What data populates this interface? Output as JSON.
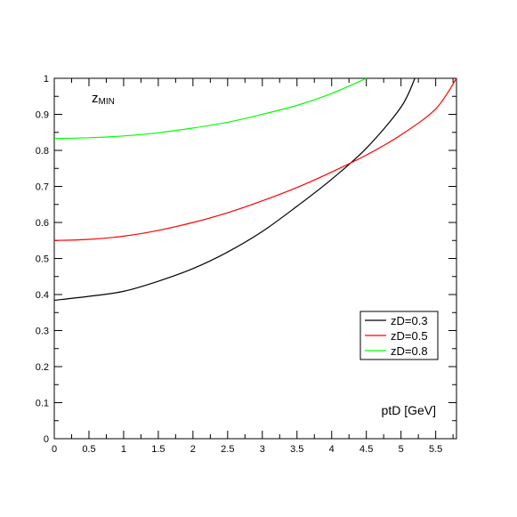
{
  "chart_data": {
    "type": "line",
    "title": "",
    "ylabel_main": "z",
    "ylabel_sub": "MIN",
    "xlabel": "ptD [GeV]",
    "xlim": [
      0,
      5.8
    ],
    "ylim": [
      0,
      1
    ],
    "x_ticks": [
      "0",
      "0.5",
      "1",
      "1.5",
      "2",
      "2.5",
      "3",
      "3.5",
      "4",
      "4.5",
      "5",
      "5.5"
    ],
    "x_tick_values": [
      0,
      0.5,
      1,
      1.5,
      2,
      2.5,
      3,
      3.5,
      4,
      4.5,
      5,
      5.5
    ],
    "y_ticks": [
      "0",
      "0.1",
      "0.2",
      "0.3",
      "0.4",
      "0.5",
      "0.6",
      "0.7",
      "0.8",
      "0.9",
      "1"
    ],
    "y_tick_values": [
      0,
      0.1,
      0.2,
      0.3,
      0.4,
      0.5,
      0.6,
      0.7,
      0.8,
      0.9,
      1
    ],
    "grid": false,
    "legend_position": "lower-right",
    "series": [
      {
        "name": "zD=0.3",
        "color": "#000000",
        "x": [
          0,
          0.5,
          1,
          1.5,
          2,
          2.5,
          3,
          3.5,
          4,
          4.5,
          5,
          5.2
        ],
        "y": [
          0.384,
          0.395,
          0.409,
          0.437,
          0.472,
          0.518,
          0.575,
          0.645,
          0.72,
          0.806,
          0.92,
          1.0
        ]
      },
      {
        "name": "zD=0.5",
        "color": "#ff0000",
        "x": [
          0,
          0.5,
          1,
          1.5,
          2,
          2.5,
          3,
          3.5,
          4,
          4.5,
          5,
          5.5,
          5.8
        ],
        "y": [
          0.55,
          0.553,
          0.562,
          0.578,
          0.6,
          0.627,
          0.66,
          0.697,
          0.74,
          0.787,
          0.843,
          0.915,
          1.0
        ]
      },
      {
        "name": "zD=0.8",
        "color": "#00ff00",
        "x": [
          0,
          0.5,
          1,
          1.5,
          2,
          2.5,
          3,
          3.5,
          4,
          4.5
        ],
        "y": [
          0.833,
          0.835,
          0.84,
          0.849,
          0.862,
          0.878,
          0.9,
          0.925,
          0.958,
          1.0
        ]
      }
    ]
  }
}
